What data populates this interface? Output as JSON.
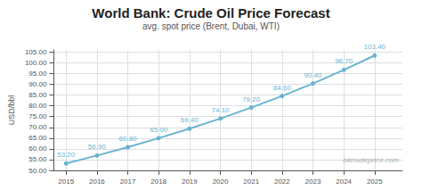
{
  "chart_data": {
    "type": "line",
    "title": "World Bank: Crude Oil Price Forecast",
    "subtitle": "avg. spot price (Brent, Dubai, WTI)",
    "ylabel": "USD/bbl",
    "annotations": [
      "oilcrudeprice.com"
    ],
    "x": [
      2015,
      2016,
      2017,
      2018,
      2019,
      2020,
      2021,
      2022,
      2023,
      2024,
      2025
    ],
    "values": [
      53.2,
      56.9,
      60.8,
      65.0,
      69.4,
      74.1,
      79.2,
      84.6,
      90.4,
      96.7,
      103.4
    ],
    "value_labels": [
      "53.20",
      "56.90",
      "60.80",
      "65.00",
      "69.40",
      "74.10",
      "79.20",
      "84.60",
      "90.40",
      "96.70",
      "103.40"
    ],
    "data_labels": true,
    "color": "#6ab4d0",
    "marker": "circle",
    "xlim": [
      2014.6,
      2025.9
    ],
    "xticks": [
      2015,
      2016,
      2017,
      2018,
      2019,
      2020,
      2021,
      2022,
      2023,
      2024,
      2025
    ],
    "ylim": [
      50.0,
      106.0
    ],
    "yticks": [
      {
        "value": 50,
        "label": "50.00"
      },
      {
        "value": 55,
        "label": "55.00"
      },
      {
        "value": 60,
        "label": "60.00"
      },
      {
        "value": 65,
        "label": "65.00"
      },
      {
        "value": 70,
        "label": "70.00"
      },
      {
        "value": 75,
        "label": "75.00"
      },
      {
        "value": 80,
        "label": "80.00"
      },
      {
        "value": 85,
        "label": "85.00"
      },
      {
        "value": 90,
        "label": "90.00"
      },
      {
        "value": 95,
        "label": "95.00"
      },
      {
        "value": 100,
        "label": "100.00"
      },
      {
        "value": 105,
        "label": "105.00"
      }
    ],
    "grid": true
  }
}
